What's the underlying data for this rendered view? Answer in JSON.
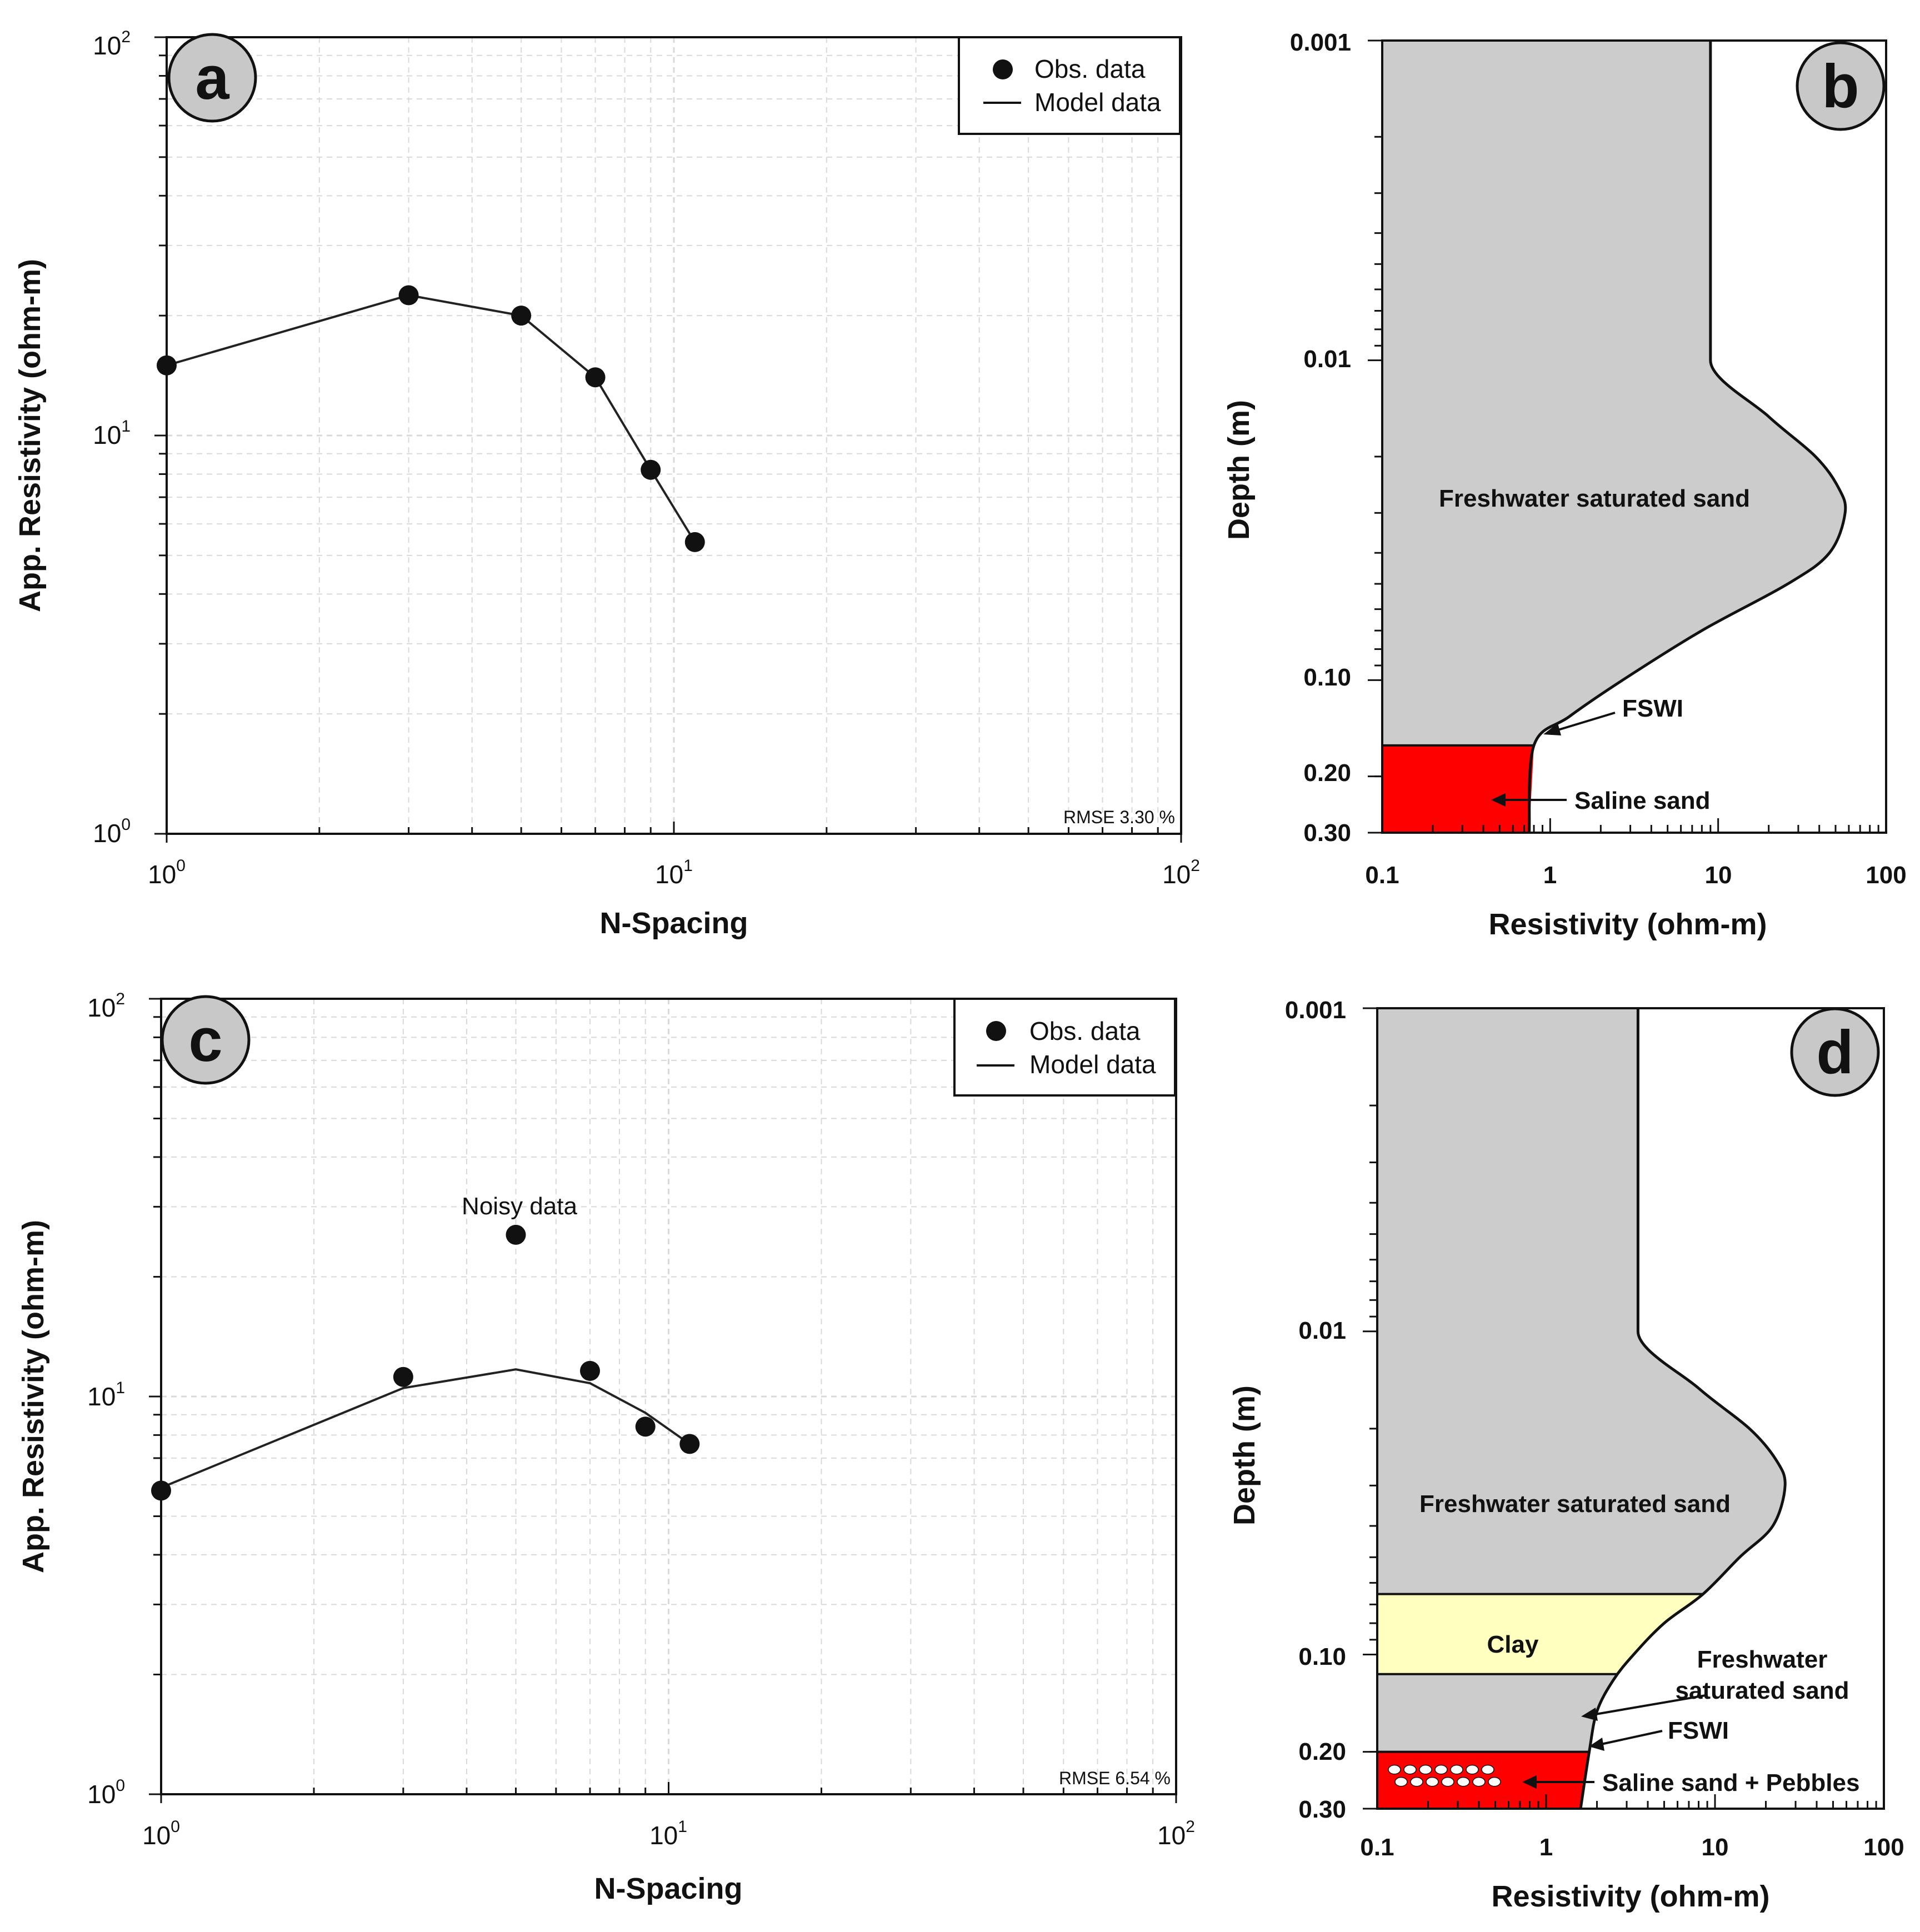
{
  "chart_data": [
    {
      "panel": "a",
      "type": "line",
      "xlabel": "N-Spacing",
      "ylabel": "App. Resistivity (ohm-m)",
      "xscale": "log",
      "yscale": "log",
      "xlim": [
        1,
        100
      ],
      "ylim": [
        1,
        100
      ],
      "xticks": [
        {
          "base": "10",
          "exp": "0"
        },
        {
          "base": "10",
          "exp": "1"
        },
        {
          "base": "10",
          "exp": "2"
        }
      ],
      "yticks": [
        {
          "base": "10",
          "exp": "0"
        },
        {
          "base": "10",
          "exp": "1"
        },
        {
          "base": "10",
          "exp": "2"
        }
      ],
      "grid": true,
      "legend": {
        "position": "top-right",
        "entries": [
          "Obs. data",
          "Model data"
        ]
      },
      "series": [
        {
          "name": "Obs. data",
          "kind": "scatter",
          "x": [
            1,
            3,
            5,
            7,
            9,
            11
          ],
          "y": [
            15,
            22.5,
            20,
            14,
            8.2,
            5.4
          ]
        },
        {
          "name": "Model data",
          "kind": "line",
          "x": [
            1,
            3,
            5,
            7,
            9,
            11
          ],
          "y": [
            15,
            22.5,
            20,
            14,
            8.2,
            5.4
          ]
        }
      ],
      "rmse": "RMSE 3.30 %"
    },
    {
      "panel": "b",
      "type": "area",
      "xlabel": "Resistivity (ohm-m)",
      "ylabel": "Depth (m)",
      "xscale": "log",
      "yscale": "log",
      "xlim": [
        0.1,
        100
      ],
      "ylim": [
        0.001,
        0.3
      ],
      "xticks": [
        "0.1",
        "1",
        "10",
        "100"
      ],
      "yticks": [
        "0.001",
        "0.01",
        "0.10",
        "0.20",
        "0.30"
      ],
      "profile": {
        "depth": [
          0.001,
          0.01,
          0.015,
          0.02,
          0.025,
          0.03,
          0.04,
          0.05,
          0.07,
          0.1,
          0.13,
          0.16,
          0.3
        ],
        "resistivity": [
          9,
          9,
          20,
          38,
          52,
          57,
          46,
          26,
          8,
          2.7,
          1.3,
          0.8,
          0.75
        ]
      },
      "layers": [
        {
          "label": "Freshwater saturated sand",
          "color": "#cccccc",
          "top": 0.001,
          "bottom": 0.16
        },
        {
          "label": "Saline sand",
          "color": "#ff0000",
          "top": 0.16,
          "bottom": 0.3
        }
      ],
      "annotations": [
        "FSWI",
        "Saline sand"
      ]
    },
    {
      "panel": "c",
      "type": "line",
      "xlabel": "N-Spacing",
      "ylabel": "App. Resistivity (ohm-m)",
      "xscale": "log",
      "yscale": "log",
      "xlim": [
        1,
        100
      ],
      "ylim": [
        1,
        100
      ],
      "xticks": [
        {
          "base": "10",
          "exp": "0"
        },
        {
          "base": "10",
          "exp": "1"
        },
        {
          "base": "10",
          "exp": "2"
        }
      ],
      "yticks": [
        {
          "base": "10",
          "exp": "0"
        },
        {
          "base": "10",
          "exp": "1"
        },
        {
          "base": "10",
          "exp": "2"
        }
      ],
      "grid": true,
      "legend": {
        "position": "top-right",
        "entries": [
          "Obs. data",
          "Model data"
        ]
      },
      "series": [
        {
          "name": "Obs. data",
          "kind": "scatter",
          "x": [
            1,
            3,
            5,
            7,
            9,
            11
          ],
          "y": [
            5.8,
            11.2,
            25.5,
            11.6,
            8.4,
            7.6
          ]
        },
        {
          "name": "Model data",
          "kind": "line",
          "x": [
            1,
            3,
            5,
            7,
            9,
            11
          ],
          "y": [
            5.9,
            10.5,
            11.7,
            10.8,
            9.1,
            7.6
          ]
        }
      ],
      "annotations": [
        "Noisy data"
      ],
      "rmse": "RMSE 6.54 %"
    },
    {
      "panel": "d",
      "type": "area",
      "xlabel": "Resistivity (ohm-m)",
      "ylabel": "Depth (m)",
      "xscale": "log",
      "yscale": "log",
      "xlim": [
        0.1,
        100
      ],
      "ylim": [
        0.001,
        0.3
      ],
      "xticks": [
        "0.1",
        "1",
        "10",
        "100"
      ],
      "yticks": [
        "0.001",
        "0.01",
        "0.10",
        "0.20",
        "0.30"
      ],
      "profile": {
        "depth": [
          0.001,
          0.01,
          0.015,
          0.02,
          0.025,
          0.03,
          0.04,
          0.05,
          0.065,
          0.08,
          0.1,
          0.12,
          0.15,
          0.2,
          0.3
        ],
        "resistivity": [
          3.5,
          3.5,
          8,
          16,
          23,
          26,
          22,
          14,
          8.5,
          5,
          3.3,
          2.5,
          2,
          1.8,
          1.6
        ]
      },
      "layers": [
        {
          "label": "Freshwater saturated sand",
          "color": "#cccccc",
          "top": 0.001,
          "bottom": 0.065
        },
        {
          "label": "Clay",
          "color": "#ffffc0",
          "top": 0.065,
          "bottom": 0.115
        },
        {
          "label": "Freshwater saturated sand",
          "color": "#cccccc",
          "top": 0.115,
          "bottom": 0.2
        },
        {
          "label": "Saline sand + Pebbles",
          "color": "#ff0000",
          "top": 0.2,
          "bottom": 0.3
        }
      ],
      "annotations": [
        "Freshwater saturated sand",
        "FSWI",
        "Saline sand + Pebbles"
      ]
    }
  ],
  "labels": {
    "a": {
      "letter": "a",
      "xlabel": "N-Spacing",
      "ylabel": "App. Resistivity (ohm-m)",
      "legend_obs": "Obs. data",
      "legend_model": "Model data",
      "rmse": "RMSE 3.30 %",
      "x0b": "10",
      "x0e": "0",
      "x1b": "10",
      "x1e": "1",
      "x2b": "10",
      "x2e": "2",
      "y0b": "10",
      "y0e": "0",
      "y1b": "10",
      "y1e": "1",
      "y2b": "10",
      "y2e": "2"
    },
    "b": {
      "letter": "b",
      "xlabel": "Resistivity (ohm-m)",
      "ylabel": "Depth (m)",
      "x0": "0.1",
      "x1": "1",
      "x2": "10",
      "x3": "100",
      "y0": "0.001",
      "y1": "0.01",
      "y2": "0.10",
      "y3": "0.20",
      "y4": "0.30",
      "layer_fresh": "Freshwater saturated sand",
      "fswi": "FSWI",
      "saline": "Saline sand"
    },
    "c": {
      "letter": "c",
      "xlabel": "N-Spacing",
      "ylabel": "App. Resistivity (ohm-m)",
      "legend_obs": "Obs. data",
      "legend_model": "Model data",
      "rmse": "RMSE 6.54 %",
      "noisy": "Noisy data",
      "x0b": "10",
      "x0e": "0",
      "x1b": "10",
      "x1e": "1",
      "x2b": "10",
      "x2e": "2",
      "y0b": "10",
      "y0e": "0",
      "y1b": "10",
      "y1e": "1",
      "y2b": "10",
      "y2e": "2"
    },
    "d": {
      "letter": "d",
      "xlabel": "Resistivity (ohm-m)",
      "ylabel": "Depth (m)",
      "x0": "0.1",
      "x1": "1",
      "x2": "10",
      "x3": "100",
      "y0": "0.001",
      "y1": "0.01",
      "y2": "0.10",
      "y3": "0.20",
      "y4": "0.30",
      "layer_fresh": "Freshwater saturated sand",
      "clay": "Clay",
      "fresh2_line1": "Freshwater",
      "fresh2_line2": "saturated sand",
      "fswi": "FSWI",
      "saline": "Saline sand + Pebbles"
    }
  },
  "colors": {
    "grey_layer": "#cccccc",
    "red_layer": "#ff0000",
    "clay_layer": "#ffffc0",
    "grid": "#d9d9d9",
    "circle_bg": "#c8c8c8"
  }
}
